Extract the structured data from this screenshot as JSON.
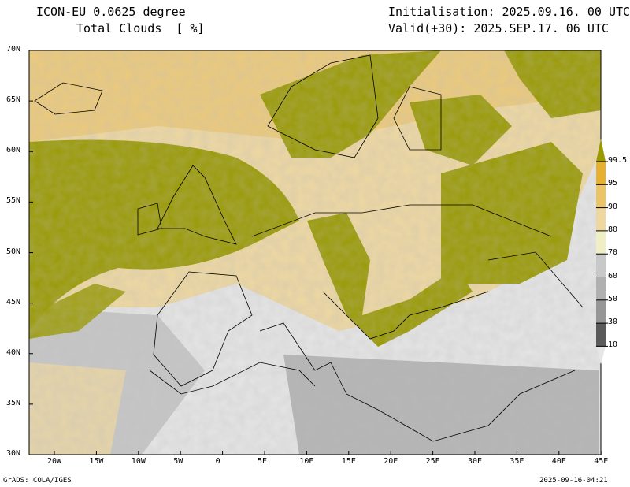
{
  "header": {
    "model": "ICON-EU 0.0625 degree",
    "variable": "Total Clouds  [ %]",
    "init": "Initialisation: 2025.09.16. 00 UTC",
    "valid": "Valid(+30): 2025.SEP.17. 06 UTC"
  },
  "footer": {
    "left": "GrADS: COLA/IGES",
    "right": "2025-09-16-04:21"
  },
  "axes": {
    "lat_labels": [
      "70N",
      "65N",
      "60N",
      "55N",
      "50N",
      "45N",
      "40N",
      "35N",
      "30N"
    ],
    "lon_labels": [
      "20W",
      "15W",
      "10W",
      "5W",
      "0",
      "5E",
      "10E",
      "15E",
      "20E",
      "25E",
      "30E",
      "35E",
      "40E",
      "45E"
    ]
  },
  "colorbar": {
    "labels": [
      "99.5",
      "95",
      "90",
      "80",
      "70",
      "60",
      "50",
      "30",
      "10"
    ],
    "colors": [
      "#999900",
      "#e8b030",
      "#ecc468",
      "#efd8a0",
      "#f0eec4",
      "#c8c8c8",
      "#b0b0b0",
      "#969696",
      "#5a5a5a",
      "#e6e6e6"
    ]
  }
}
